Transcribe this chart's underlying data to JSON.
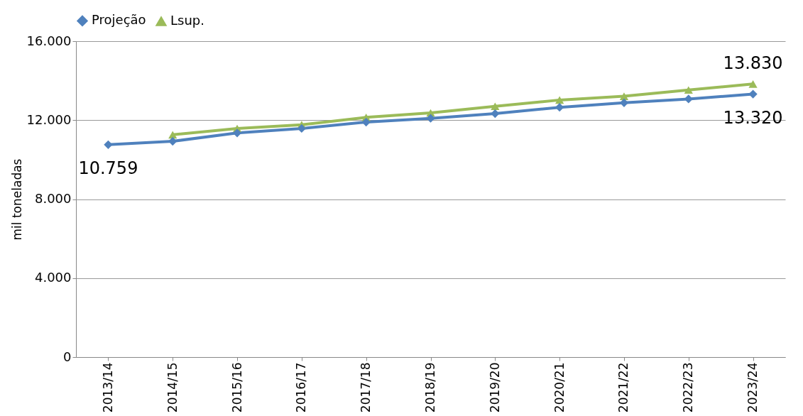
{
  "chart_data": {
    "type": "line",
    "ylabel": "mil toneladas",
    "categories": [
      "2013/14",
      "2014/15",
      "2015/16",
      "2016/17",
      "2017/18",
      "2018/19",
      "2019/20",
      "2020/21",
      "2021/22",
      "2022/23",
      "2023/24"
    ],
    "series": [
      {
        "name": "Projeção",
        "color": "#4f81bd",
        "marker": "diamond",
        "values": [
          10759,
          10930,
          11350,
          11580,
          11900,
          12090,
          12330,
          12650,
          12880,
          13070,
          13320
        ],
        "value_labels": [
          "10.759",
          null,
          null,
          null,
          null,
          null,
          null,
          null,
          null,
          null,
          "13.320"
        ]
      },
      {
        "name": "Lsup.",
        "color": "#9bbb59",
        "marker": "triangle",
        "values": [
          null,
          11260,
          11580,
          11770,
          12140,
          12370,
          12700,
          13020,
          13210,
          13530,
          13830
        ],
        "value_labels": [
          null,
          null,
          null,
          null,
          null,
          null,
          null,
          null,
          null,
          null,
          "13.830"
        ]
      }
    ],
    "ylim": [
      0,
      16000
    ],
    "yticks": [
      {
        "value": 0,
        "label": "0"
      },
      {
        "value": 4000,
        "label": "4.000"
      },
      {
        "value": 8000,
        "label": "8.000"
      },
      {
        "value": 12000,
        "label": "12.000"
      },
      {
        "value": 16000,
        "label": "16.000"
      }
    ],
    "grid": "y",
    "legend": "top",
    "line_style": "solid"
  }
}
